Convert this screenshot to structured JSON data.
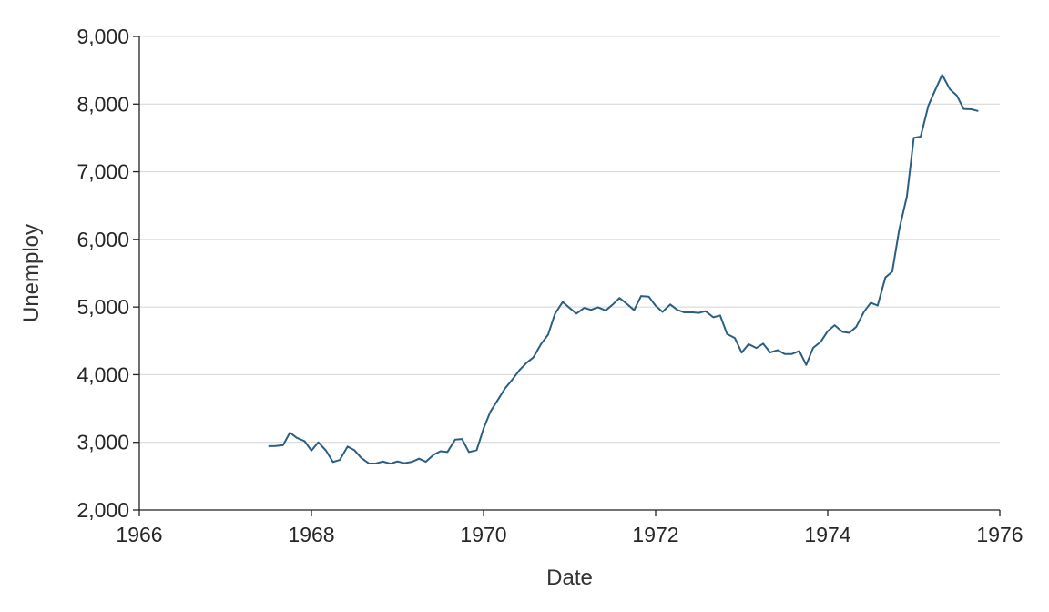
{
  "chart_data": {
    "type": "line",
    "title": "",
    "xlabel": "Date",
    "ylabel": "Unemploy",
    "xlim": [
      1966,
      1976
    ],
    "ylim": [
      2000,
      9000
    ],
    "x_ticks": [
      1966,
      1968,
      1970,
      1972,
      1974,
      1976
    ],
    "x_tick_labels": [
      "1966",
      "1968",
      "1970",
      "1972",
      "1974",
      "1976"
    ],
    "y_ticks": [
      2000,
      3000,
      4000,
      5000,
      6000,
      7000,
      8000,
      9000
    ],
    "y_tick_labels": [
      "2,000",
      "3,000",
      "4,000",
      "5,000",
      "6,000",
      "7,000",
      "8,000",
      "9,000"
    ],
    "grid": "horizontal",
    "line_color": "#2b5f82",
    "series": [
      {
        "x": [
          1967.5,
          1967.58,
          1967.67,
          1967.75,
          1967.83,
          1967.92,
          1968.0,
          1968.08,
          1968.17,
          1968.25,
          1968.33,
          1968.42,
          1968.5,
          1968.58,
          1968.67,
          1968.75,
          1968.83,
          1968.92,
          1969.0,
          1969.08,
          1969.17,
          1969.25,
          1969.33,
          1969.42,
          1969.5,
          1969.58,
          1969.67,
          1969.75,
          1969.83,
          1969.92,
          1970.0,
          1970.08,
          1970.17,
          1970.25,
          1970.33,
          1970.42,
          1970.5,
          1970.58,
          1970.67,
          1970.75,
          1970.83,
          1970.92,
          1971.0,
          1971.08,
          1971.17,
          1971.25,
          1971.33,
          1971.42,
          1971.5,
          1971.58,
          1971.67,
          1971.75,
          1971.83,
          1971.92,
          1972.0,
          1972.08,
          1972.17,
          1972.25,
          1972.33,
          1972.42,
          1972.5,
          1972.58,
          1972.67,
          1972.75,
          1972.83,
          1972.92,
          1973.0,
          1973.08,
          1973.17,
          1973.25,
          1973.33,
          1973.42,
          1973.5,
          1973.58,
          1973.67,
          1973.75,
          1973.83,
          1973.92,
          1974.0,
          1974.08,
          1974.17,
          1974.25,
          1974.33,
          1974.42,
          1974.5,
          1974.58,
          1974.67,
          1974.75,
          1974.83,
          1974.92,
          1975.0,
          1975.08,
          1975.17,
          1975.25,
          1975.33,
          1975.42,
          1975.5,
          1975.58,
          1975.67,
          1975.75
        ],
        "y": [
          2944,
          2945,
          2958,
          3143,
          3066,
          3018,
          2878,
          3001,
          2877,
          2709,
          2740,
          2938,
          2883,
          2768,
          2686,
          2689,
          2715,
          2685,
          2718,
          2692,
          2712,
          2758,
          2713,
          2816,
          2868,
          2856,
          3040,
          3049,
          2856,
          2884,
          3201,
          3453,
          3635,
          3797,
          3919,
          4071,
          4175,
          4256,
          4456,
          4591,
          4898,
          5076,
          4986,
          4903,
          4987,
          4959,
          4996,
          4949,
          5035,
          5134,
          5042,
          4954,
          5161,
          5154,
          5019,
          4928,
          5038,
          4959,
          4922,
          4923,
          4913,
          4939,
          4849,
          4875,
          4602,
          4543,
          4326,
          4452,
          4394,
          4459,
          4329,
          4363,
          4305,
          4305,
          4350,
          4144,
          4396,
          4489,
          4644,
          4731,
          4634,
          4618,
          4705,
          4927,
          5063,
          5022,
          5437,
          5523,
          6140,
          6636,
          7501,
          7520,
          7978,
          8210,
          8433,
          8220,
          8127,
          7928,
          7923,
          7897
        ]
      }
    ]
  }
}
